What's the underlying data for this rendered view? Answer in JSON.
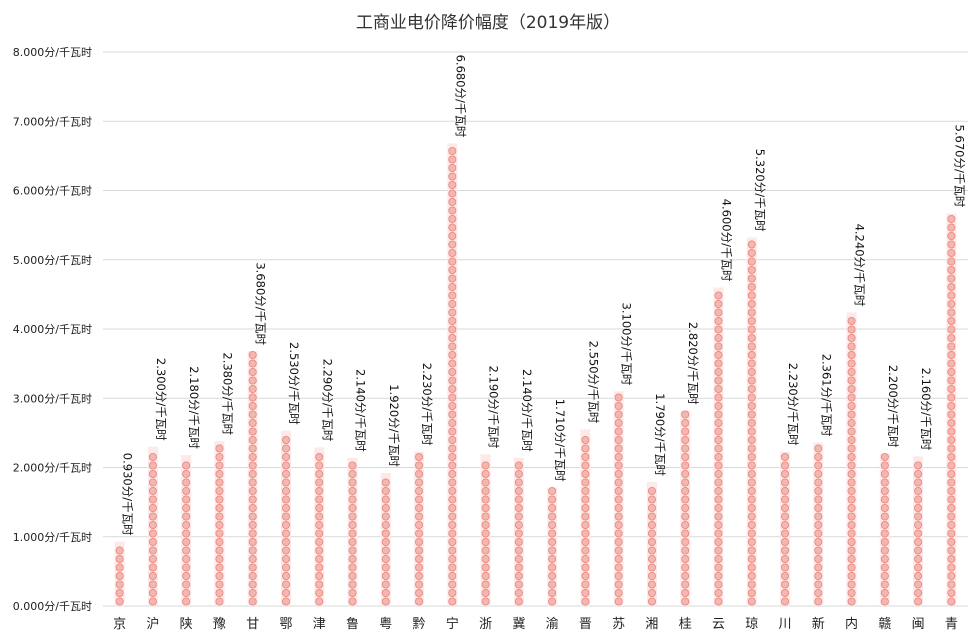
{
  "chart_data": {
    "type": "bar",
    "title": "工商业电价降价幅度（2019年版）",
    "xlabel": "",
    "ylabel": "",
    "unit": "分/千瓦时",
    "ylim": [
      0,
      8
    ],
    "yticks": [
      "0.000分/千瓦时",
      "1.000分/千瓦时",
      "2.000分/千瓦时",
      "3.000分/千瓦时",
      "4.000分/千瓦时",
      "5.000分/千瓦时",
      "6.000分/千瓦时",
      "7.000分/千瓦时",
      "8.000分/千瓦时"
    ],
    "grid": true,
    "legend": "none",
    "categories": [
      "京",
      "沪",
      "陕",
      "豫",
      "甘",
      "鄂",
      "津",
      "鲁",
      "粤",
      "黔",
      "宁",
      "浙",
      "冀",
      "渝",
      "晋",
      "苏",
      "湘",
      "桂",
      "云",
      "琼",
      "川",
      "新",
      "内",
      "赣",
      "闽",
      "青"
    ],
    "values": [
      0.93,
      2.3,
      2.18,
      2.38,
      3.68,
      2.53,
      2.29,
      2.14,
      1.92,
      2.23,
      6.68,
      2.19,
      2.14,
      1.71,
      2.55,
      3.1,
      1.79,
      2.82,
      4.6,
      5.32,
      2.23,
      2.361,
      4.24,
      2.2,
      2.16,
      5.67
    ],
    "data_labels": [
      "0.930分/千瓦时",
      "2.300分/千瓦时",
      "2.180分/千瓦时",
      "2.380分/千瓦时",
      "3.680分/千瓦时",
      "2.530分/千瓦时",
      "2.290分/千瓦时",
      "2.140分/千瓦时",
      "1.920分/千瓦时",
      "2.230分/千瓦时",
      "6.680分/千瓦时",
      "2.190分/千瓦时",
      "2.140分/千瓦时",
      "1.710分/千瓦时",
      "2.550分/千瓦时",
      "3.100分/千瓦时",
      "1.790分/千瓦时",
      "2.820分/千瓦时",
      "4.600分/千瓦时",
      "5.320分/千瓦时",
      "2.230分/千瓦时",
      "2.361分/千瓦时",
      "4.240分/千瓦时",
      "2.200分/千瓦时",
      "2.160分/千瓦时",
      "5.670分/千瓦时"
    ],
    "colors": {
      "bar_fill": "#f4b6b0",
      "bar_stroke": "#e8847c",
      "grid": "#d9d9d9"
    }
  }
}
